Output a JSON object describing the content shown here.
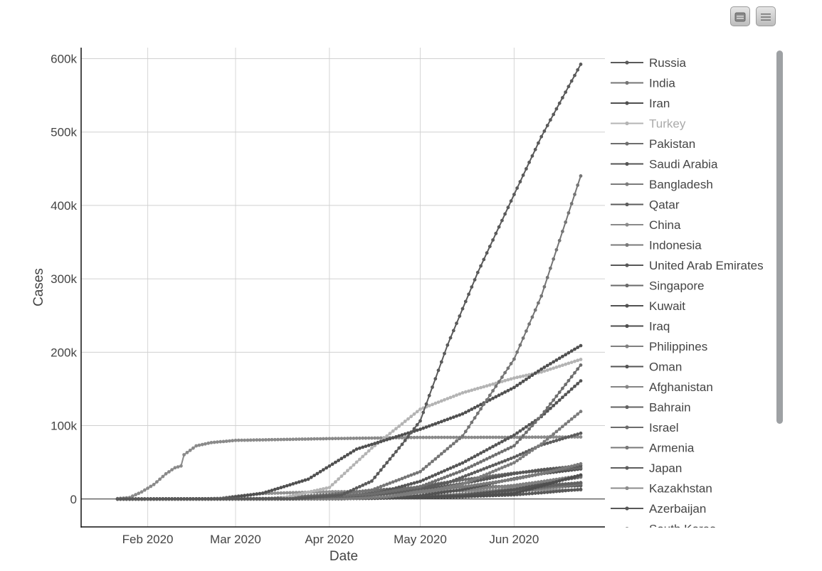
{
  "toolbar": {
    "buttons": [
      {
        "icon": "window-icon"
      },
      {
        "icon": "menu-icon"
      }
    ]
  },
  "chart_data": {
    "type": "line",
    "xlabel": "Date",
    "ylabel": "Cases",
    "x_start": "2020-01-22",
    "x_end": "2020-06-23",
    "xlim": [
      "2020-01-10",
      "2020-07-01"
    ],
    "ylim": [
      -38000,
      615000
    ],
    "x_ticks": [
      {
        "label": "Feb 2020",
        "date": "2020-02-01"
      },
      {
        "label": "Mar 2020",
        "date": "2020-03-01"
      },
      {
        "label": "Apr 2020",
        "date": "2020-04-01"
      },
      {
        "label": "May 2020",
        "date": "2020-05-01"
      },
      {
        "label": "Jun 2020",
        "date": "2020-06-01"
      }
    ],
    "y_ticks": [
      {
        "label": "0",
        "value": 0
      },
      {
        "label": "100k",
        "value": 100000
      },
      {
        "label": "200k",
        "value": 200000
      },
      {
        "label": "300k",
        "value": 300000
      },
      {
        "label": "400k",
        "value": 400000
      },
      {
        "label": "500k",
        "value": 500000
      },
      {
        "label": "600k",
        "value": 600000
      }
    ],
    "grid": true,
    "legend_placement": "right",
    "marker": "circle",
    "series": [
      {
        "name": "Russia",
        "color": "#5a5a5a",
        "points": [
          [
            "2020-01-22",
            0
          ],
          [
            "2020-03-20",
            300
          ],
          [
            "2020-04-05",
            5400
          ],
          [
            "2020-04-15",
            24500
          ],
          [
            "2020-04-25",
            74500
          ],
          [
            "2020-05-01",
            106500
          ],
          [
            "2020-05-10",
            209700
          ],
          [
            "2020-05-20",
            308700
          ],
          [
            "2020-06-01",
            414900
          ],
          [
            "2020-06-10",
            493700
          ],
          [
            "2020-06-23",
            592300
          ]
        ]
      },
      {
        "name": "India",
        "color": "#757575",
        "points": [
          [
            "2020-01-22",
            0
          ],
          [
            "2020-03-25",
            600
          ],
          [
            "2020-04-15",
            12300
          ],
          [
            "2020-05-01",
            37300
          ],
          [
            "2020-05-15",
            85900
          ],
          [
            "2020-06-01",
            190600
          ],
          [
            "2020-06-10",
            276600
          ],
          [
            "2020-06-23",
            440200
          ]
        ]
      },
      {
        "name": "Iran",
        "color": "#505050",
        "points": [
          [
            "2020-01-22",
            0
          ],
          [
            "2020-02-25",
            100
          ],
          [
            "2020-03-10",
            8000
          ],
          [
            "2020-03-25",
            27000
          ],
          [
            "2020-04-10",
            68000
          ],
          [
            "2020-05-01",
            95000
          ],
          [
            "2020-05-15",
            116000
          ],
          [
            "2020-06-01",
            152000
          ],
          [
            "2020-06-10",
            177000
          ],
          [
            "2020-06-23",
            209000
          ]
        ]
      },
      {
        "name": "Turkey",
        "color": "#b4b4b4",
        "points": [
          [
            "2020-01-22",
            0
          ],
          [
            "2020-03-15",
            50
          ],
          [
            "2020-04-01",
            15700
          ],
          [
            "2020-04-15",
            69400
          ],
          [
            "2020-05-01",
            122400
          ],
          [
            "2020-05-15",
            144700
          ],
          [
            "2020-06-01",
            164800
          ],
          [
            "2020-06-10",
            173000
          ],
          [
            "2020-06-23",
            190200
          ]
        ]
      },
      {
        "name": "Pakistan",
        "color": "#6e6e6e",
        "points": [
          [
            "2020-01-22",
            0
          ],
          [
            "2020-03-15",
            50
          ],
          [
            "2020-04-15",
            6500
          ],
          [
            "2020-05-01",
            16800
          ],
          [
            "2020-05-15",
            38800
          ],
          [
            "2020-06-01",
            72500
          ],
          [
            "2020-06-10",
            113700
          ],
          [
            "2020-06-23",
            182500
          ]
        ]
      },
      {
        "name": "Saudi Arabia",
        "color": "#555555",
        "points": [
          [
            "2020-01-22",
            0
          ],
          [
            "2020-03-15",
            100
          ],
          [
            "2020-04-15",
            5900
          ],
          [
            "2020-05-01",
            24100
          ],
          [
            "2020-05-15",
            49200
          ],
          [
            "2020-06-01",
            87100
          ],
          [
            "2020-06-10",
            112300
          ],
          [
            "2020-06-23",
            161000
          ]
        ]
      },
      {
        "name": "Bangladesh",
        "color": "#7c7c7c",
        "points": [
          [
            "2020-01-22",
            0
          ],
          [
            "2020-04-05",
            100
          ],
          [
            "2020-04-20",
            2900
          ],
          [
            "2020-05-01",
            8800
          ],
          [
            "2020-05-15",
            20100
          ],
          [
            "2020-06-01",
            49500
          ],
          [
            "2020-06-10",
            74900
          ],
          [
            "2020-06-23",
            119200
          ]
        ]
      },
      {
        "name": "Qatar",
        "color": "#5c5c5c",
        "points": [
          [
            "2020-01-22",
            0
          ],
          [
            "2020-03-10",
            20
          ],
          [
            "2020-04-10",
            2400
          ],
          [
            "2020-04-25",
            10300
          ],
          [
            "2020-05-10",
            22000
          ],
          [
            "2020-06-01",
            56900
          ],
          [
            "2020-06-10",
            73600
          ],
          [
            "2020-06-23",
            89600
          ]
        ]
      },
      {
        "name": "China",
        "color": "#8a8a8a",
        "points": [
          [
            "2020-01-22",
            548
          ],
          [
            "2020-01-26",
            2000
          ],
          [
            "2020-01-30",
            9700
          ],
          [
            "2020-02-03",
            19700
          ],
          [
            "2020-02-07",
            34400
          ],
          [
            "2020-02-10",
            42600
          ],
          [
            "2020-02-12",
            45000
          ],
          [
            "2020-02-13",
            60300
          ],
          [
            "2020-02-17",
            72400
          ],
          [
            "2020-02-22",
            76900
          ],
          [
            "2020-03-01",
            79900
          ],
          [
            "2020-03-15",
            81000
          ],
          [
            "2020-04-01",
            82300
          ],
          [
            "2020-05-01",
            83900
          ],
          [
            "2020-06-01",
            84100
          ],
          [
            "2020-06-23",
            84600
          ]
        ]
      },
      {
        "name": "Indonesia",
        "color": "#7a7a7a",
        "points": [
          [
            "2020-01-22",
            0
          ],
          [
            "2020-03-15",
            100
          ],
          [
            "2020-04-15",
            5100
          ],
          [
            "2020-05-01",
            10500
          ],
          [
            "2020-05-15",
            16500
          ],
          [
            "2020-06-01",
            26900
          ],
          [
            "2020-06-10",
            34300
          ],
          [
            "2020-06-23",
            47900
          ]
        ]
      },
      {
        "name": "United Arab Emirates",
        "color": "#585858",
        "points": [
          [
            "2020-01-22",
            0
          ],
          [
            "2020-03-15",
            100
          ],
          [
            "2020-04-15",
            5400
          ],
          [
            "2020-05-01",
            12500
          ],
          [
            "2020-05-15",
            21000
          ],
          [
            "2020-06-01",
            34600
          ],
          [
            "2020-06-10",
            39900
          ],
          [
            "2020-06-23",
            45300
          ]
        ]
      },
      {
        "name": "Singapore",
        "color": "#6a6a6a",
        "points": [
          [
            "2020-01-22",
            0
          ],
          [
            "2020-03-01",
            100
          ],
          [
            "2020-04-10",
            2100
          ],
          [
            "2020-04-20",
            8000
          ],
          [
            "2020-05-01",
            17100
          ],
          [
            "2020-05-15",
            26100
          ],
          [
            "2020-06-01",
            35300
          ],
          [
            "2020-06-10",
            38500
          ],
          [
            "2020-06-23",
            42600
          ]
        ]
      },
      {
        "name": "Kuwait",
        "color": "#525252",
        "points": [
          [
            "2020-01-22",
            0
          ],
          [
            "2020-03-15",
            100
          ],
          [
            "2020-04-15",
            1400
          ],
          [
            "2020-05-01",
            4600
          ],
          [
            "2020-05-15",
            12900
          ],
          [
            "2020-06-01",
            27800
          ],
          [
            "2020-06-10",
            34400
          ],
          [
            "2020-06-23",
            41000
          ]
        ]
      },
      {
        "name": "Iraq",
        "color": "#4e4e4e",
        "points": [
          [
            "2020-01-22",
            0
          ],
          [
            "2020-03-15",
            100
          ],
          [
            "2020-04-15",
            1400
          ],
          [
            "2020-05-01",
            2100
          ],
          [
            "2020-05-15",
            3100
          ],
          [
            "2020-06-01",
            7400
          ],
          [
            "2020-06-10",
            17800
          ],
          [
            "2020-06-23",
            32700
          ]
        ]
      },
      {
        "name": "Philippines",
        "color": "#808080",
        "points": [
          [
            "2020-01-22",
            0
          ],
          [
            "2020-03-15",
            100
          ],
          [
            "2020-04-15",
            5500
          ],
          [
            "2020-05-01",
            8800
          ],
          [
            "2020-05-15",
            11900
          ],
          [
            "2020-06-01",
            18600
          ],
          [
            "2020-06-10",
            23700
          ],
          [
            "2020-06-23",
            31800
          ]
        ]
      },
      {
        "name": "Oman",
        "color": "#545454",
        "points": [
          [
            "2020-01-22",
            0
          ],
          [
            "2020-03-20",
            50
          ],
          [
            "2020-04-15",
            900
          ],
          [
            "2020-05-01",
            2400
          ],
          [
            "2020-05-15",
            5000
          ],
          [
            "2020-06-01",
            12800
          ],
          [
            "2020-06-10",
            19900
          ],
          [
            "2020-06-23",
            31100
          ]
        ]
      },
      {
        "name": "Afghanistan",
        "color": "#858585",
        "points": [
          [
            "2020-01-22",
            0
          ],
          [
            "2020-03-20",
            50
          ],
          [
            "2020-04-15",
            800
          ],
          [
            "2020-05-01",
            2300
          ],
          [
            "2020-05-15",
            6100
          ],
          [
            "2020-06-01",
            15200
          ],
          [
            "2020-06-10",
            22100
          ],
          [
            "2020-06-23",
            29600
          ]
        ]
      },
      {
        "name": "Bahrain",
        "color": "#626262",
        "points": [
          [
            "2020-01-22",
            0
          ],
          [
            "2020-03-01",
            50
          ],
          [
            "2020-04-15",
            1600
          ],
          [
            "2020-05-01",
            3300
          ],
          [
            "2020-05-15",
            6700
          ],
          [
            "2020-06-01",
            11900
          ],
          [
            "2020-06-10",
            16700
          ],
          [
            "2020-06-23",
            22400
          ]
        ]
      },
      {
        "name": "Israel",
        "color": "#6c6c6c",
        "points": [
          [
            "2020-01-22",
            0
          ],
          [
            "2020-03-10",
            100
          ],
          [
            "2020-04-01",
            6000
          ],
          [
            "2020-04-15",
            12000
          ],
          [
            "2020-05-01",
            16000
          ],
          [
            "2020-06-01",
            17100
          ],
          [
            "2020-06-10",
            18600
          ],
          [
            "2020-06-23",
            21800
          ]
        ]
      },
      {
        "name": "Armenia",
        "color": "#787878",
        "points": [
          [
            "2020-01-22",
            0
          ],
          [
            "2020-03-15",
            50
          ],
          [
            "2020-04-15",
            1100
          ],
          [
            "2020-05-01",
            2100
          ],
          [
            "2020-05-15",
            4000
          ],
          [
            "2020-06-01",
            9300
          ],
          [
            "2020-06-10",
            14700
          ],
          [
            "2020-06-23",
            21000
          ]
        ]
      },
      {
        "name": "Japan",
        "color": "#5e5e5e",
        "points": [
          [
            "2020-01-22",
            2
          ],
          [
            "2020-02-15",
            50
          ],
          [
            "2020-03-15",
            800
          ],
          [
            "2020-04-01",
            2200
          ],
          [
            "2020-04-15",
            8100
          ],
          [
            "2020-05-01",
            14300
          ],
          [
            "2020-05-15",
            16200
          ],
          [
            "2020-06-01",
            16900
          ],
          [
            "2020-06-23",
            17900
          ]
        ]
      },
      {
        "name": "Kazakhstan",
        "color": "#8c8c8c",
        "points": [
          [
            "2020-01-22",
            0
          ],
          [
            "2020-03-20",
            50
          ],
          [
            "2020-04-15",
            1300
          ],
          [
            "2020-05-01",
            3400
          ],
          [
            "2020-05-15",
            5400
          ],
          [
            "2020-06-01",
            11500
          ],
          [
            "2020-06-10",
            13900
          ],
          [
            "2020-06-23",
            19100
          ]
        ]
      },
      {
        "name": "Azerbaijan",
        "color": "#585858",
        "points": [
          [
            "2020-01-22",
            0
          ],
          [
            "2020-03-15",
            50
          ],
          [
            "2020-04-15",
            1300
          ],
          [
            "2020-05-01",
            1800
          ],
          [
            "2020-05-15",
            3100
          ],
          [
            "2020-06-01",
            5700
          ],
          [
            "2020-06-10",
            8500
          ],
          [
            "2020-06-23",
            13200
          ]
        ]
      },
      {
        "name": "South Korea",
        "color": "#909090",
        "points": [
          [
            "2020-01-22",
            1
          ],
          [
            "2020-02-18",
            31
          ],
          [
            "2020-02-25",
            977
          ],
          [
            "2020-03-01",
            3700
          ],
          [
            "2020-03-10",
            7500
          ],
          [
            "2020-03-20",
            8700
          ],
          [
            "2020-04-01",
            9900
          ],
          [
            "2020-05-01",
            10800
          ],
          [
            "2020-06-01",
            11500
          ],
          [
            "2020-06-23",
            12500
          ]
        ]
      }
    ]
  }
}
